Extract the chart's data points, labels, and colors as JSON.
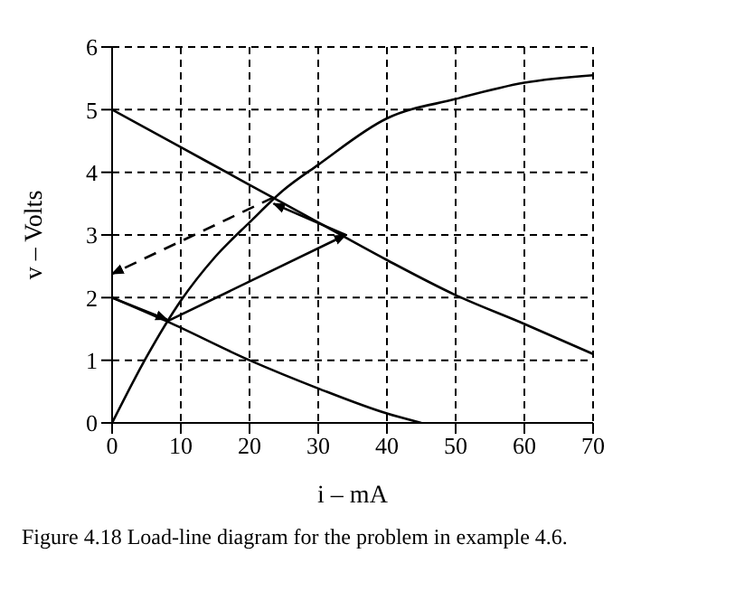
{
  "chart_data": {
    "type": "line",
    "xlabel": "i – mA",
    "ylabel": "v – Volts",
    "annotations": [
      "Figure 4.18 Load-line diagram for the problem in example 4.6."
    ],
    "xlim": [
      0,
      70
    ],
    "ylim": [
      0,
      6
    ],
    "xticks": [
      0,
      10,
      20,
      30,
      40,
      50,
      60,
      70
    ],
    "yticks": [
      0,
      1,
      2,
      3,
      4,
      5,
      6
    ],
    "grid": true,
    "marker": "none",
    "series": [
      {
        "color": "#000000",
        "x": [
          0,
          5,
          10,
          15,
          20,
          25,
          30,
          40,
          50,
          60,
          70
        ],
        "values": [
          0,
          1.05,
          1.95,
          2.65,
          3.2,
          3.72,
          4.12,
          4.86,
          5.17,
          5.43,
          5.55
        ]
      },
      {
        "color": "#000000",
        "x": [
          0,
          10,
          20,
          30,
          40,
          50,
          60,
          70
        ],
        "values": [
          5,
          4.4,
          3.8,
          3.2,
          2.6,
          2.04,
          1.58,
          1.1
        ]
      },
      {
        "color": "#000000",
        "x": [
          0,
          8,
          20,
          30,
          40,
          45
        ],
        "values": [
          2,
          1.62,
          1.0,
          0.55,
          0.15,
          0
        ]
      },
      {
        "color": "#000000",
        "x": [
          8,
          34
        ],
        "values": [
          1.62,
          3.0
        ]
      },
      {
        "color": "#000000",
        "x": [
          34,
          23.5
        ],
        "values": [
          3.0,
          3.5
        ]
      },
      {
        "color": "#000000",
        "x": [
          23.5,
          0
        ],
        "values": [
          3.6,
          2.38
        ],
        "line_style": "dashed"
      },
      {
        "color": "#000000",
        "x": [
          0,
          8
        ],
        "values": [
          2,
          1.65
        ]
      }
    ]
  }
}
